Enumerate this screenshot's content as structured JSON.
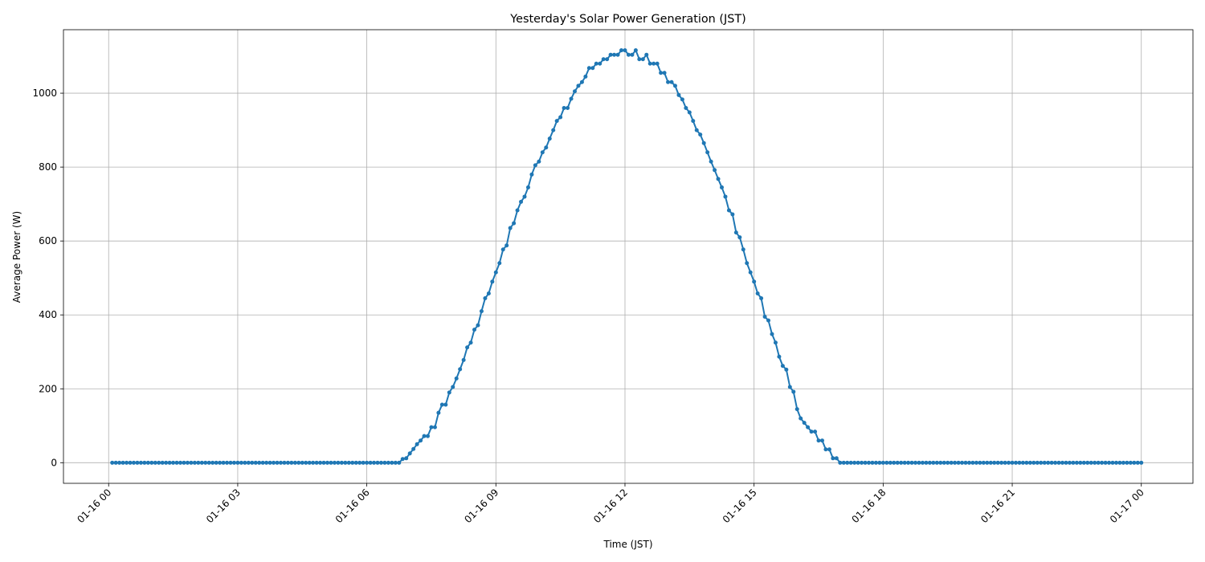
{
  "chart_data": {
    "type": "line",
    "title": "Yesterday's Solar Power Generation (JST)",
    "xlabel": "Time (JST)",
    "ylabel": "Average Power (W)",
    "color": "#1f77b4",
    "grid": true,
    "xlim": [
      -63,
      1512
    ],
    "ylim": [
      -55.8,
      1171.8
    ],
    "xticks": [
      {
        "value": 0,
        "label": "01-16 00"
      },
      {
        "value": 180,
        "label": "01-16 03"
      },
      {
        "value": 360,
        "label": "01-16 06"
      },
      {
        "value": 540,
        "label": "01-16 09"
      },
      {
        "value": 720,
        "label": "01-16 12"
      },
      {
        "value": 900,
        "label": "01-16 15"
      },
      {
        "value": 1080,
        "label": "01-16 18"
      },
      {
        "value": 1260,
        "label": "01-16 21"
      },
      {
        "value": 1440,
        "label": "01-17 00"
      }
    ],
    "yticks": [
      0,
      200,
      400,
      600,
      800,
      1000
    ],
    "x": [
      5,
      10,
      15,
      20,
      25,
      30,
      35,
      40,
      45,
      50,
      55,
      60,
      65,
      70,
      75,
      80,
      85,
      90,
      95,
      100,
      105,
      110,
      115,
      120,
      125,
      130,
      135,
      140,
      145,
      150,
      155,
      160,
      165,
      170,
      175,
      180,
      185,
      190,
      195,
      200,
      205,
      210,
      215,
      220,
      225,
      230,
      235,
      240,
      245,
      250,
      255,
      260,
      265,
      270,
      275,
      280,
      285,
      290,
      295,
      300,
      305,
      310,
      315,
      320,
      325,
      330,
      335,
      340,
      345,
      350,
      355,
      360,
      365,
      370,
      375,
      380,
      385,
      390,
      395,
      400,
      405,
      410,
      415,
      420,
      425,
      430,
      435,
      440,
      445,
      450,
      455,
      460,
      465,
      470,
      475,
      480,
      485,
      490,
      495,
      500,
      505,
      510,
      515,
      520,
      525,
      530,
      535,
      540,
      545,
      550,
      555,
      560,
      565,
      570,
      575,
      580,
      585,
      590,
      595,
      600,
      605,
      610,
      615,
      620,
      625,
      630,
      635,
      640,
      645,
      650,
      655,
      660,
      665,
      670,
      675,
      680,
      685,
      690,
      695,
      700,
      705,
      710,
      715,
      720,
      725,
      730,
      735,
      740,
      745,
      750,
      755,
      760,
      765,
      770,
      775,
      780,
      785,
      790,
      795,
      800,
      805,
      810,
      815,
      820,
      825,
      830,
      835,
      840,
      845,
      850,
      855,
      860,
      865,
      870,
      875,
      880,
      885,
      890,
      895,
      900,
      905,
      910,
      915,
      920,
      925,
      930,
      935,
      940,
      945,
      950,
      955,
      960,
      965,
      970,
      975,
      980,
      985,
      990,
      995,
      1000,
      1005,
      1010,
      1015,
      1020,
      1025,
      1030,
      1035,
      1040,
      1045,
      1050,
      1055,
      1060,
      1065,
      1070,
      1075,
      1080,
      1085,
      1090,
      1095,
      1100,
      1105,
      1110,
      1115,
      1120,
      1125,
      1130,
      1135,
      1140,
      1145,
      1150,
      1155,
      1160,
      1165,
      1170,
      1175,
      1180,
      1185,
      1190,
      1195,
      1200,
      1205,
      1210,
      1215,
      1220,
      1225,
      1230,
      1235,
      1240,
      1245,
      1250,
      1255,
      1260,
      1265,
      1270,
      1275,
      1280,
      1285,
      1290,
      1295,
      1300,
      1305,
      1310,
      1315,
      1320,
      1325,
      1330,
      1335,
      1340,
      1345,
      1350,
      1355,
      1360,
      1365,
      1370,
      1375,
      1380,
      1385,
      1390,
      1395,
      1400,
      1405,
      1410,
      1415,
      1420,
      1425,
      1430,
      1435,
      1440
    ],
    "values": [
      0,
      0,
      0,
      0,
      0,
      0,
      0,
      0,
      0,
      0,
      0,
      0,
      0,
      0,
      0,
      0,
      0,
      0,
      0,
      0,
      0,
      0,
      0,
      0,
      0,
      0,
      0,
      0,
      0,
      0,
      0,
      0,
      0,
      0,
      0,
      0,
      0,
      0,
      0,
      0,
      0,
      0,
      0,
      0,
      0,
      0,
      0,
      0,
      0,
      0,
      0,
      0,
      0,
      0,
      0,
      0,
      0,
      0,
      0,
      0,
      0,
      0,
      0,
      0,
      0,
      0,
      0,
      0,
      0,
      0,
      0,
      0,
      0,
      0,
      0,
      0,
      0,
      0,
      0,
      0,
      0,
      10,
      12,
      25,
      37,
      50,
      60,
      72,
      72,
      96,
      96,
      135,
      157,
      157,
      190,
      205,
      228,
      253,
      278,
      312,
      325,
      360,
      372,
      410,
      445,
      458,
      490,
      515,
      540,
      577,
      588,
      635,
      648,
      683,
      706,
      720,
      745,
      780,
      805,
      815,
      840,
      853,
      877,
      900,
      925,
      935,
      960,
      960,
      985,
      1005,
      1020,
      1030,
      1045,
      1068,
      1068,
      1080,
      1080,
      1092,
      1092,
      1104,
      1104,
      1104,
      1116,
      1116,
      1104,
      1104,
      1116,
      1092,
      1092,
      1104,
      1080,
      1080,
      1080,
      1055,
      1055,
      1030,
      1030,
      1020,
      995,
      983,
      960,
      948,
      925,
      900,
      888,
      865,
      840,
      815,
      792,
      768,
      745,
      720,
      683,
      672,
      623,
      610,
      577,
      540,
      515,
      490,
      458,
      445,
      395,
      385,
      348,
      325,
      287,
      262,
      252,
      205,
      192,
      145,
      120,
      108,
      96,
      84,
      84,
      60,
      60,
      36,
      36,
      12,
      12,
      0,
      0,
      0,
      0,
      0,
      0,
      0,
      0,
      0,
      0,
      0,
      0,
      0,
      0,
      0,
      0,
      0,
      0,
      0,
      0,
      0,
      0,
      0,
      0,
      0,
      0,
      0,
      0,
      0,
      0,
      0,
      0,
      0,
      0,
      0,
      0,
      0,
      0,
      0,
      0,
      0,
      0,
      0,
      0,
      0,
      0,
      0,
      0,
      0,
      0,
      0,
      0,
      0,
      0,
      0,
      0,
      0,
      0,
      0,
      0,
      0,
      0,
      0,
      0,
      0,
      0,
      0,
      0,
      0,
      0,
      0,
      0,
      0,
      0,
      0,
      0,
      0,
      0,
      0,
      0,
      0,
      0,
      0,
      0,
      0
    ]
  }
}
